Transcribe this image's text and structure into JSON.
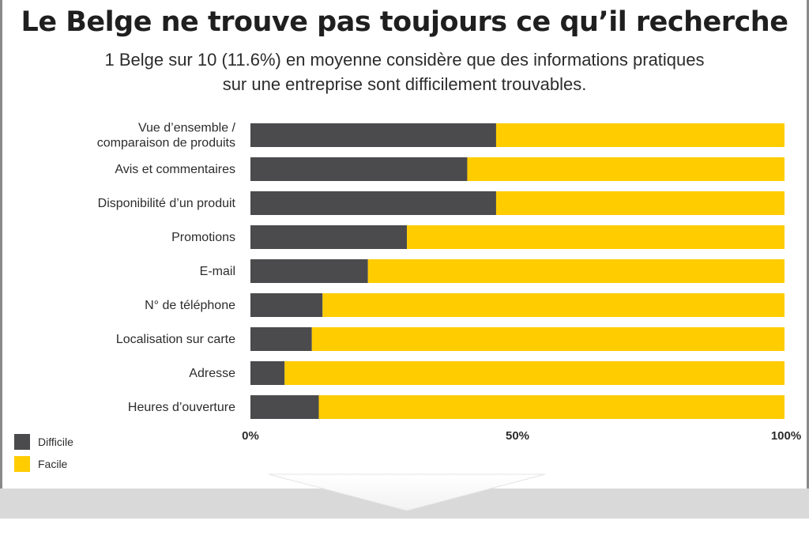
{
  "header": {
    "title": "Le Belge ne trouve pas toujours ce qu’il recherche",
    "subtitle_line1": "1 Belge sur 10 (11.6%) en moyenne considère que des informations pratiques",
    "subtitle_line2": "sur une entreprise sont difficilement trouvables."
  },
  "legend": {
    "difficile": "Difficile",
    "facile": "Facile"
  },
  "colors": {
    "difficile": "#4b4b4d",
    "facile": "#ffcc00",
    "text": "#2c2c2c"
  },
  "chart_data": {
    "type": "bar",
    "orientation": "horizontal",
    "stacked": true,
    "percent": true,
    "title": "Le Belge ne trouve pas toujours ce qu’il recherche",
    "categories": [
      [
        "Vue d’ensemble /",
        "comparaison de produits"
      ],
      [
        "Avis et commentaires"
      ],
      [
        "Disponibilité d’un produit"
      ],
      [
        "Promotions"
      ],
      [
        "E-mail"
      ],
      [
        "N° de téléphone"
      ],
      [
        "Localisation sur carte"
      ],
      [
        "Adresse"
      ],
      [
        "Heures d’ouverture"
      ]
    ],
    "series": [
      {
        "name": "Difficile",
        "values": [
          46,
          40.6,
          46,
          29.3,
          22,
          13.5,
          11.5,
          6.4,
          12.8
        ]
      },
      {
        "name": "Facile",
        "values": [
          54,
          59.4,
          54,
          70.7,
          78,
          86.5,
          88.5,
          93.6,
          87.2
        ]
      }
    ],
    "xlim": [
      0,
      100
    ],
    "xticks": [
      "0%",
      "50%",
      "100%"
    ],
    "legend_position": "bottom-left"
  }
}
